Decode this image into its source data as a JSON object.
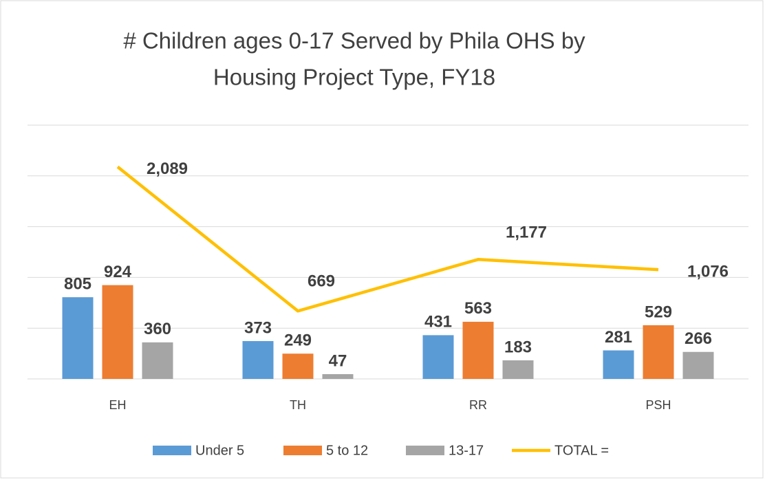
{
  "chart_data": {
    "type": "bar_line",
    "title": [
      "# Children ages 0-17 Served by Phila OHS by",
      "Housing Project Type, FY18"
    ],
    "categories": [
      "EH",
      "TH",
      "RR",
      "PSH"
    ],
    "series": [
      {
        "name": "Under 5",
        "color": "#5b9bd5",
        "type": "bar",
        "values": [
          805,
          373,
          431,
          281
        ]
      },
      {
        "name": "5 to 12",
        "color": "#ed7d31",
        "type": "bar",
        "values": [
          924,
          249,
          563,
          529
        ]
      },
      {
        "name": "13-17",
        "color": "#a5a5a5",
        "type": "bar",
        "values": [
          360,
          47,
          183,
          266
        ]
      },
      {
        "name": "TOTAL =",
        "color": "#ffc000",
        "type": "line",
        "values": [
          2089,
          669,
          1177,
          1076
        ],
        "value_labels": [
          "2,089",
          "669",
          "1,177",
          "1,076"
        ]
      }
    ],
    "ylim": [
      0,
      2500
    ],
    "yticks": [
      0,
      500,
      1000,
      1500,
      2000,
      2500
    ],
    "grid": true,
    "tick_labels": false,
    "legend": "bottom"
  }
}
